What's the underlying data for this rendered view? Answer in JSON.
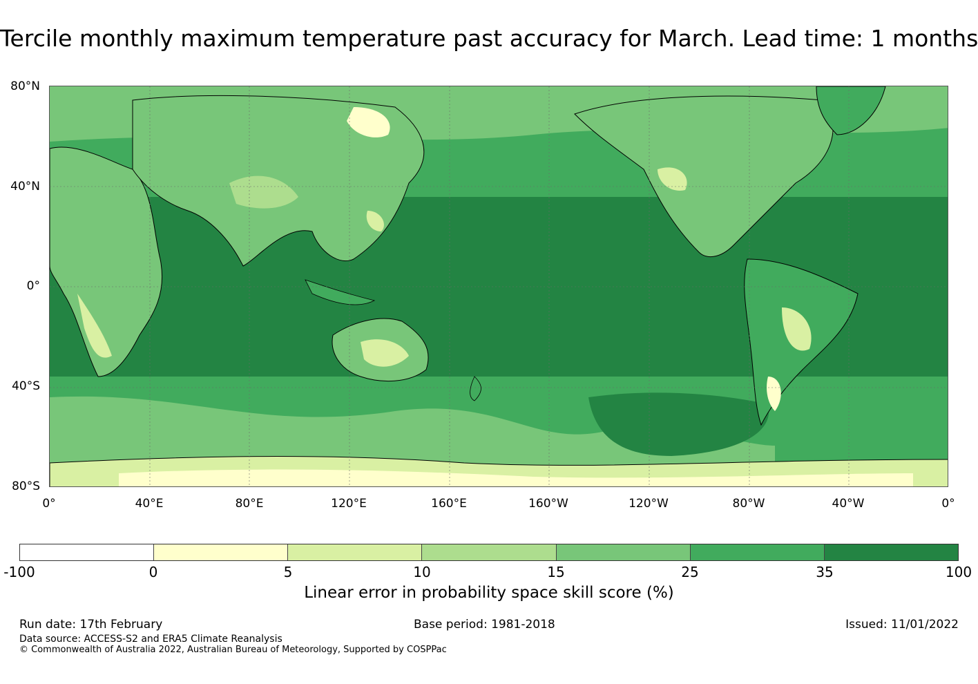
{
  "title": "Tercile monthly maximum temperature past accuracy for March. Lead time: 1 months",
  "map": {
    "projection": "equirectangular, Pacific-centred",
    "lat_labels": [
      "80°N",
      "40°N",
      "0°",
      "40°S",
      "80°S"
    ],
    "lon_labels": [
      "0°",
      "40°E",
      "80°E",
      "120°E",
      "160°E",
      "160°W",
      "120°W",
      "80°W",
      "40°W",
      "0°"
    ],
    "grid": true,
    "lat_range": [
      -80,
      80
    ],
    "lon_range": [
      0,
      360
    ]
  },
  "legend": {
    "ticks": [
      "-100",
      "0",
      "5",
      "10",
      "15",
      "25",
      "35",
      "100"
    ],
    "colors": [
      "#ffffff",
      "#ffffcc",
      "#d9f0a3",
      "#addd8e",
      "#78c679",
      "#41ab5d",
      "#238443"
    ],
    "label": "Linear error in probability space skill score (%)"
  },
  "footer": {
    "run_date": "Run date: 17th February",
    "base_period": "Base period: 1981-2018",
    "issued": "Issued: 11/01/2022",
    "data_source": "Data source: ACCESS-S2 and ERA5 Climate Reanalysis",
    "copyright": "© Commonwealth of Australia 2022, Australian Bureau of Meteorology, Supported by COSPPac"
  }
}
